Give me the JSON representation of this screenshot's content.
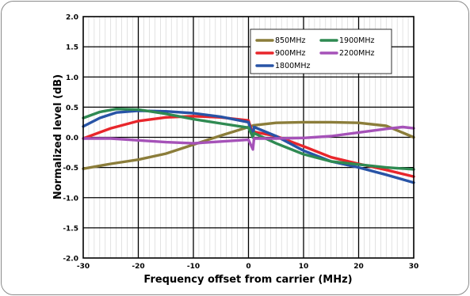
{
  "chart_data": {
    "type": "line",
    "title": "",
    "xlabel": "Frequency offset from carrier (MHz)",
    "ylabel": "Normalized level (dB)",
    "xlim": [
      -30,
      30
    ],
    "ylim": [
      -2.0,
      2.0
    ],
    "x_ticks": [
      "-30",
      "-20",
      "-10",
      "0",
      "10",
      "20",
      "30"
    ],
    "y_ticks": [
      "2.0",
      "1.5",
      "1.0",
      "0.5",
      "0.0",
      "-0.5",
      "-1.0",
      "-1.5",
      "-2.0"
    ],
    "grid": true,
    "legend_position": "top-right",
    "series": [
      {
        "name": "850MHz",
        "color": "#8b7d3a",
        "x": [
          -30,
          -25,
          -20,
          -15,
          -10,
          -5,
          0,
          1,
          5,
          10,
          15,
          20,
          25,
          30
        ],
        "y": [
          -0.52,
          -0.44,
          -0.37,
          -0.27,
          -0.12,
          0.03,
          0.17,
          0.2,
          0.24,
          0.25,
          0.25,
          0.24,
          0.19,
          0.0
        ]
      },
      {
        "name": "900MHz",
        "color": "#e8262b",
        "x": [
          -30,
          -25,
          -20,
          -15,
          -10,
          -5,
          0,
          0.8,
          1,
          5,
          10,
          15,
          20,
          25,
          30
        ],
        "y": [
          -0.02,
          0.15,
          0.27,
          0.33,
          0.35,
          0.33,
          0.28,
          0.05,
          0.09,
          0.02,
          -0.15,
          -0.33,
          -0.44,
          -0.54,
          -0.65
        ]
      },
      {
        "name": "1800MHz",
        "color": "#2854a6",
        "x": [
          -30,
          -27,
          -24,
          -20,
          -15,
          -10,
          -5,
          0,
          0.8,
          1,
          5,
          10,
          15,
          20,
          25,
          30
        ],
        "y": [
          0.18,
          0.32,
          0.41,
          0.44,
          0.43,
          0.4,
          0.34,
          0.25,
          0.0,
          0.17,
          0.02,
          -0.22,
          -0.4,
          -0.5,
          -0.62,
          -0.75
        ]
      },
      {
        "name": "1900MHz",
        "color": "#2f8a52",
        "x": [
          -30,
          -27,
          -24,
          -20,
          -15,
          -10,
          -5,
          0,
          0.8,
          1,
          5,
          10,
          15,
          20,
          25,
          30
        ],
        "y": [
          0.32,
          0.42,
          0.47,
          0.46,
          0.39,
          0.3,
          0.23,
          0.16,
          0.0,
          0.07,
          -0.1,
          -0.28,
          -0.4,
          -0.45,
          -0.5,
          -0.53
        ]
      },
      {
        "name": "2200MHz",
        "color": "#a552b8",
        "x": [
          -30,
          -25,
          -20,
          -15,
          -10,
          -5,
          0,
          0.8,
          1,
          5,
          10,
          15,
          20,
          25,
          28,
          30
        ],
        "y": [
          -0.02,
          -0.02,
          -0.05,
          -0.08,
          -0.1,
          -0.07,
          -0.04,
          -0.2,
          -0.02,
          -0.02,
          -0.01,
          0.02,
          0.08,
          0.14,
          0.17,
          0.15
        ]
      }
    ]
  }
}
